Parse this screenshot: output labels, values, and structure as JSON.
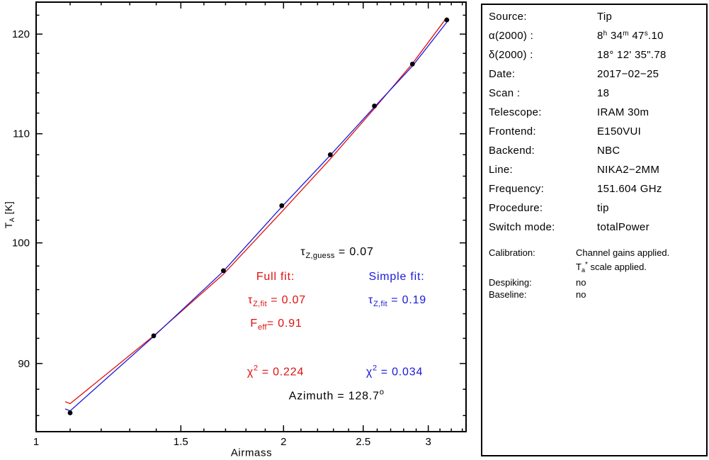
{
  "chart_data": {
    "type": "scatter",
    "title": "",
    "xlabel": "Airmass",
    "ylabel_t": "T",
    "ylabel_sub": "A",
    "ylabel_rest": " [K]",
    "x_scale": "log",
    "y_scale": "log",
    "xlim": [
      1.0,
      3.335
    ],
    "ylim": [
      84.8,
      123.4
    ],
    "x_major_ticks": [
      1,
      1.5,
      2,
      2.5,
      3
    ],
    "x_major_tick_labels": [
      "1",
      "1.5",
      "2",
      "2.5",
      "3"
    ],
    "x_minor_tick_step": 0.1,
    "y_major_ticks": [
      90,
      100,
      110,
      120
    ],
    "y_major_tick_labels": [
      "90",
      "100",
      "110",
      "120"
    ],
    "y_minor_tick_step": 2,
    "grid": false,
    "point_color": "#000008",
    "points": {
      "airmass": [
        1.1,
        1.39,
        1.69,
        1.99,
        2.28,
        2.58,
        2.87,
        3.16
      ],
      "ta_k": [
        86.2,
        92.2,
        97.6,
        103.3,
        108.0,
        112.7,
        116.9,
        121.5
      ]
    },
    "fits": [
      {
        "name": "Full fit",
        "tau_z_fit": 0.07,
        "f_eff": 0.91,
        "chi2": 0.224,
        "color": "#e01010",
        "x": [
          1.085,
          1.1,
          1.39,
          1.69,
          1.99,
          2.28,
          2.58,
          2.87,
          3.16
        ],
        "y": [
          87.05,
          86.9,
          92.2,
          97.3,
          102.75,
          107.6,
          112.45,
          116.95,
          121.75
        ]
      },
      {
        "name": "Simple fit",
        "tau_z_fit": 0.19,
        "chi2": 0.034,
        "color": "#1a1ad6",
        "x": [
          1.085,
          1.1,
          1.39,
          1.69,
          1.99,
          2.28,
          2.58,
          2.87,
          3.16
        ],
        "y": [
          86.5,
          86.35,
          92.15,
          97.55,
          103.2,
          107.95,
          112.6,
          116.7,
          121.25
        ]
      }
    ],
    "tau_z_guess": 0.07,
    "azimuth_deg": 128.7
  },
  "annotations": {
    "tau_guess": {
      "sym": "τ",
      "sub": "Z,guess",
      "rest": " = 0.07"
    },
    "full_fit": {
      "text": "Full fit:"
    },
    "simple_fit": {
      "text": "Simple fit:"
    },
    "tau_fit_red": {
      "sym": "τ",
      "sub": "Z,fit",
      "rest": " = 0.07"
    },
    "tau_fit_blue": {
      "sym": "τ",
      "sub": "Z,fit",
      "rest": " = 0.19"
    },
    "feff": {
      "sym": "F",
      "sub": "eff",
      "rest": "= 0.91"
    },
    "chi_red": {
      "sym": "χ",
      "sup": "2",
      "rest": " = 0.224"
    },
    "chi_blue": {
      "sym": "χ",
      "sup": "2",
      "rest": " = 0.034"
    },
    "azimuth": {
      "text": "Azimuth = 128.7",
      "sup": "o"
    }
  },
  "panel": {
    "rows": [
      {
        "label": "Source:",
        "value": "Tip"
      },
      {
        "label": "α(2000) :",
        "ra": {
          "p1": "8",
          "s1": "h",
          "p2": " 34",
          "s2": "m",
          "p3": " 47",
          "s3": "s",
          "p4": ".10"
        }
      },
      {
        "label": "δ(2000) :",
        "value": "18° 12' 35\".78"
      },
      {
        "label": "Date:",
        "value": "2017−02−25"
      },
      {
        "label": "Scan :",
        "value": "18"
      },
      {
        "label": "Telescope:",
        "value": "IRAM 30m"
      },
      {
        "label": "Frontend:",
        "value": "E150VUI"
      },
      {
        "label": "Backend:",
        "value": "NBC"
      },
      {
        "label": "Line:",
        "value": "NIKA2−2MM"
      },
      {
        "label": "Frequency:",
        "value": "151.604 GHz"
      },
      {
        "label": "Procedure:",
        "value": "tip"
      },
      {
        "label": "Switch mode:",
        "value": "totalPower"
      }
    ],
    "extras": {
      "calibration_label": "Calibration:",
      "calibration_line1": "Channel gains applied.",
      "cal_t": "T",
      "cal_sub": "a",
      "cal_sup": "*",
      "cal_rest": " scale applied.",
      "despiking_label": "Despiking:",
      "despiking_value": "no",
      "baseline_label": "Baseline:",
      "baseline_value": "no"
    }
  }
}
